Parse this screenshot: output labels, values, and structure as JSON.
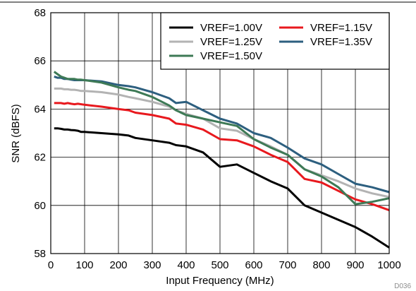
{
  "chart_data": {
    "type": "line",
    "xlabel": "Input Frequency (MHz)",
    "ylabel": "SNR (dBFS)",
    "xlim": [
      0,
      1000
    ],
    "ylim": [
      58,
      68
    ],
    "xticks": [
      0,
      100,
      200,
      300,
      400,
      500,
      600,
      700,
      800,
      900,
      1000
    ],
    "yticks": [
      58,
      60,
      62,
      64,
      66,
      68
    ],
    "grid": true,
    "legend_position": "top-right",
    "figure_code": "D036",
    "series": [
      {
        "name": "VREF=1.00V",
        "color": "#000000",
        "x": [
          10,
          20,
          30,
          40,
          50,
          60,
          70,
          80,
          90,
          100,
          150,
          200,
          230,
          250,
          300,
          350,
          370,
          400,
          450,
          500,
          550,
          600,
          650,
          700,
          750,
          800,
          850,
          900,
          950,
          1000
        ],
        "y": [
          63.2,
          63.2,
          63.18,
          63.15,
          63.15,
          63.13,
          63.12,
          63.1,
          63.05,
          63.05,
          63.0,
          62.95,
          62.9,
          62.8,
          62.7,
          62.6,
          62.5,
          62.45,
          62.2,
          61.6,
          61.7,
          61.35,
          61.0,
          60.7,
          60.0,
          59.7,
          59.4,
          59.1,
          58.7,
          58.25
        ]
      },
      {
        "name": "VREF=1.15V",
        "color": "#e8191e",
        "x": [
          10,
          20,
          30,
          40,
          50,
          60,
          70,
          80,
          90,
          100,
          150,
          200,
          230,
          250,
          300,
          350,
          370,
          400,
          450,
          500,
          550,
          600,
          650,
          700,
          750,
          800,
          850,
          900,
          950,
          1000
        ],
        "y": [
          64.25,
          64.25,
          64.25,
          64.22,
          64.25,
          64.22,
          64.2,
          64.22,
          64.2,
          64.18,
          64.1,
          64.0,
          63.95,
          63.85,
          63.75,
          63.6,
          63.4,
          63.35,
          63.15,
          62.75,
          62.7,
          62.45,
          62.1,
          61.8,
          61.1,
          60.95,
          60.6,
          60.25,
          60.05,
          59.8
        ]
      },
      {
        "name": "VREF=1.25V",
        "color": "#b3b3b3",
        "x": [
          10,
          20,
          30,
          40,
          50,
          60,
          70,
          80,
          90,
          100,
          150,
          200,
          230,
          250,
          300,
          350,
          370,
          400,
          450,
          500,
          550,
          600,
          650,
          700,
          750,
          800,
          850,
          900,
          950,
          1000
        ],
        "y": [
          64.85,
          64.85,
          64.85,
          64.82,
          64.82,
          64.8,
          64.8,
          64.78,
          64.75,
          64.75,
          64.7,
          64.6,
          64.5,
          64.45,
          64.3,
          64.1,
          63.95,
          63.8,
          63.6,
          63.2,
          63.1,
          62.75,
          62.45,
          62.1,
          61.5,
          61.25,
          61.0,
          60.7,
          60.5,
          60.35
        ]
      },
      {
        "name": "VREF=1.35V",
        "color": "#2d5f7f",
        "x": [
          10,
          20,
          30,
          40,
          50,
          60,
          70,
          80,
          90,
          100,
          150,
          200,
          230,
          250,
          300,
          350,
          370,
          400,
          450,
          500,
          550,
          600,
          650,
          700,
          750,
          800,
          850,
          900,
          950,
          1000
        ],
        "y": [
          65.35,
          65.3,
          65.3,
          65.25,
          65.25,
          65.22,
          65.2,
          65.2,
          65.2,
          65.2,
          65.15,
          65.0,
          64.95,
          64.9,
          64.7,
          64.45,
          64.25,
          64.3,
          63.95,
          63.6,
          63.4,
          63.0,
          62.8,
          62.4,
          61.95,
          61.7,
          61.3,
          60.9,
          60.75,
          60.55
        ]
      },
      {
        "name": "VREF=1.50V",
        "color": "#3e7a56",
        "x": [
          10,
          20,
          30,
          40,
          50,
          60,
          70,
          80,
          90,
          100,
          150,
          200,
          230,
          250,
          300,
          350,
          370,
          400,
          450,
          500,
          550,
          600,
          650,
          700,
          750,
          800,
          850,
          900,
          950,
          1000
        ],
        "y": [
          65.55,
          65.45,
          65.35,
          65.3,
          65.25,
          65.25,
          65.25,
          65.22,
          65.22,
          65.2,
          65.1,
          64.9,
          64.8,
          64.75,
          64.5,
          64.15,
          63.95,
          63.75,
          63.6,
          63.45,
          63.3,
          62.75,
          62.4,
          62.1,
          61.5,
          61.2,
          60.75,
          60.05,
          60.15,
          60.3
        ]
      }
    ]
  }
}
